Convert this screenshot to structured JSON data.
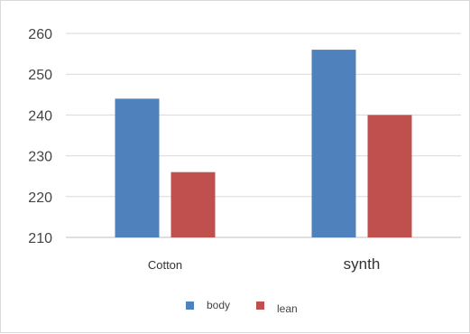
{
  "chart_data": {
    "type": "bar",
    "categories": [
      "Cotton",
      "synth"
    ],
    "series": [
      {
        "name": "body",
        "values": [
          244,
          256
        ],
        "color": "#4f81bd"
      },
      {
        "name": "lean",
        "values": [
          226,
          240
        ],
        "color": "#c0504d"
      }
    ],
    "y_ticks": [
      "210",
      "220",
      "230",
      "240",
      "250",
      "260"
    ],
    "ylim": [
      210,
      260
    ],
    "grid": true,
    "legend_position": "bottom"
  }
}
